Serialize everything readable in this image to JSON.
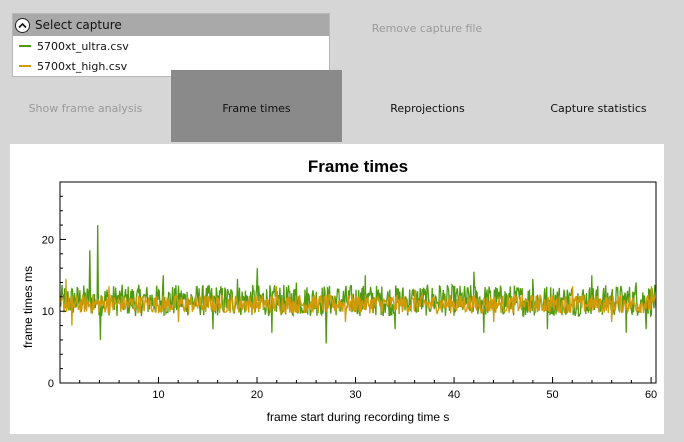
{
  "capture_panel": {
    "header": "Select capture",
    "items": [
      {
        "label": "5700xt_ultra.csv",
        "color": "#4f9a10"
      },
      {
        "label": "5700xt_high.csv",
        "color": "#d19a08"
      }
    ]
  },
  "remove_button": "Remove capture file",
  "tabs": [
    {
      "label": "Show frame analysis",
      "state": "disabled"
    },
    {
      "label": "Frame times",
      "state": "active"
    },
    {
      "label": "Reprojections",
      "state": "normal"
    },
    {
      "label": "Capture statistics",
      "state": "normal"
    }
  ],
  "chart_data": {
    "type": "line",
    "title": "Frame times",
    "xlabel": "frame start during recording time s",
    "ylabel": "frame times ms",
    "xlim": [
      0,
      60.5
    ],
    "ylim": [
      0,
      28
    ],
    "x_ticks": [
      10,
      20,
      30,
      40,
      50,
      60
    ],
    "y_ticks": [
      0,
      10,
      20
    ],
    "series": [
      {
        "name": "5700xt_ultra.csv",
        "color": "#4f9a10",
        "baseline": 11.5,
        "spikes": [
          [
            3.0,
            18.5
          ],
          [
            3.8,
            22.0
          ],
          [
            4.1,
            6.0
          ],
          [
            10.5,
            15.0
          ],
          [
            15.5,
            7.5
          ],
          [
            18.0,
            14.5
          ],
          [
            20.0,
            16.0
          ],
          [
            21.5,
            7.0
          ],
          [
            24.0,
            14.0
          ],
          [
            27.0,
            5.5
          ],
          [
            31.0,
            15.0
          ],
          [
            34.0,
            7.5
          ],
          [
            38.5,
            13.5
          ],
          [
            42.0,
            15.5
          ],
          [
            43.0,
            7.0
          ],
          [
            48.0,
            14.5
          ],
          [
            49.5,
            7.5
          ],
          [
            54.0,
            15.0
          ],
          [
            57.5,
            7.0
          ],
          [
            58.5,
            14.0
          ],
          [
            59.5,
            7.5
          ]
        ]
      },
      {
        "name": "5700xt_high.csv",
        "color": "#d19a08",
        "baseline": 11.0,
        "spikes": [
          [
            0.6,
            14.5
          ],
          [
            1.2,
            8.0
          ],
          [
            5.0,
            13.5
          ],
          [
            12.0,
            8.5
          ],
          [
            22.0,
            13.5
          ],
          [
            29.0,
            8.5
          ],
          [
            36.0,
            13.0
          ],
          [
            44.0,
            8.5
          ],
          [
            52.0,
            13.5
          ],
          [
            56.0,
            8.5
          ],
          [
            60.0,
            13.5
          ]
        ]
      }
    ]
  }
}
